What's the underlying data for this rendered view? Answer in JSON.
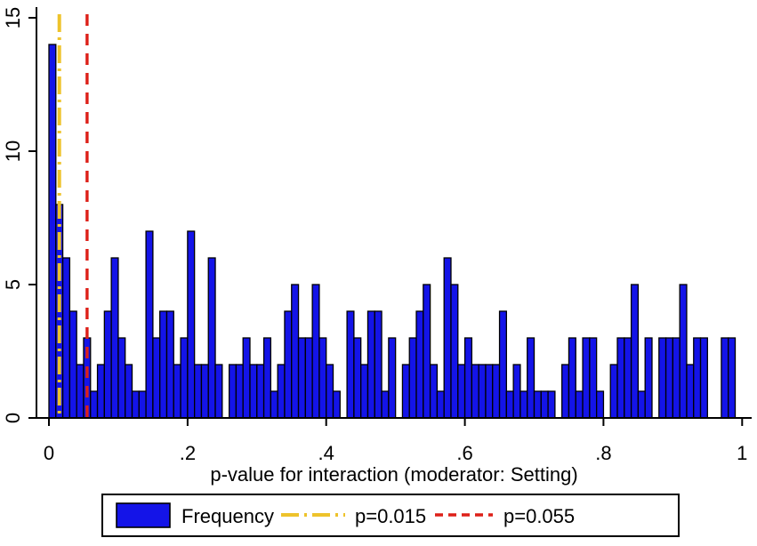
{
  "chart_data": {
    "type": "bar",
    "subtype": "histogram",
    "title": "",
    "xlabel": "p-value for interaction (moderator: Setting)",
    "ylabel": "",
    "xlim": [
      0,
      1.013
    ],
    "ylim": [
      0,
      15
    ],
    "grid": false,
    "bin_start": 0,
    "bin_width": 0.01,
    "frequencies": [
      14,
      8,
      6,
      4,
      2,
      3,
      1,
      2,
      4,
      6,
      3,
      2,
      1,
      1,
      7,
      3,
      4,
      4,
      2,
      3,
      7,
      2,
      2,
      6,
      2,
      0,
      2,
      2,
      3,
      2,
      2,
      3,
      1,
      2,
      4,
      5,
      3,
      3,
      5,
      3,
      2,
      1,
      0,
      4,
      3,
      2,
      4,
      4,
      1,
      3,
      0,
      2,
      3,
      4,
      5,
      2,
      1,
      6,
      5,
      2,
      3,
      2,
      2,
      2,
      2,
      4,
      1,
      2,
      1,
      3,
      1,
      1,
      1,
      0,
      2,
      3,
      1,
      3,
      3,
      1,
      0,
      2,
      3,
      3,
      5,
      1,
      3,
      0,
      3,
      3,
      3,
      5,
      2,
      3,
      3,
      0,
      0,
      3,
      3,
      0
    ],
    "x_ticks": [
      {
        "value": 0,
        "label": "0"
      },
      {
        "value": 0.2,
        "label": ".2"
      },
      {
        "value": 0.4,
        "label": ".4"
      },
      {
        "value": 0.6,
        "label": ".6"
      },
      {
        "value": 0.8,
        "label": ".8"
      },
      {
        "value": 1,
        "label": "1"
      }
    ],
    "y_ticks": [
      {
        "value": 0,
        "label": "0"
      },
      {
        "value": 5,
        "label": "5"
      },
      {
        "value": 10,
        "label": "10"
      },
      {
        "value": 15,
        "label": "15"
      }
    ],
    "bar_fill": "#1414e8",
    "bar_stroke": "#000000",
    "reference_lines": [
      {
        "value": 0.015,
        "label": "p=0.015",
        "color": "#eec32b",
        "pattern": "dash-dot"
      },
      {
        "value": 0.055,
        "label": "p=0.055",
        "color": "#dd2018",
        "pattern": "dashed"
      }
    ],
    "legend": {
      "position": "bottom",
      "items": [
        {
          "swatch": "bar",
          "label": "Frequency",
          "color": "#1414e8"
        },
        {
          "swatch": "dash-dot",
          "label": "p=0.015",
          "color": "#eec32b"
        },
        {
          "swatch": "dashed",
          "label": "p=0.055",
          "color": "#dd2018"
        }
      ]
    }
  }
}
